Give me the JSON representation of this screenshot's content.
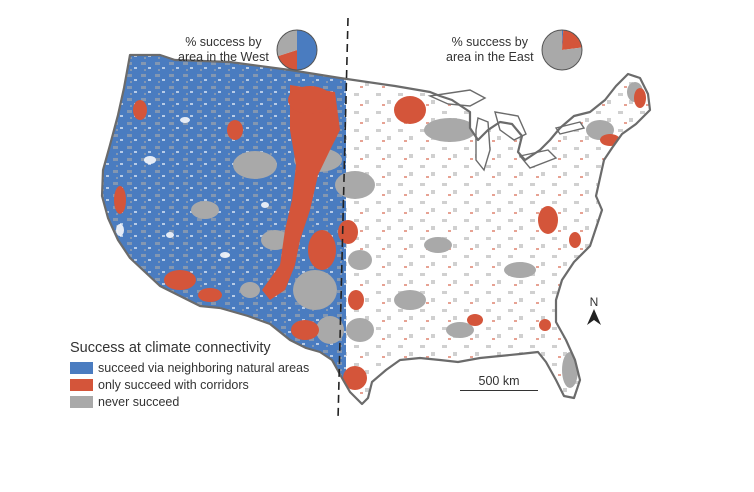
{
  "pies": {
    "west": {
      "label_line1": "% success by",
      "label_line2": "area in the West",
      "shares": [
        {
          "category": "succeed",
          "fraction": 0.5
        },
        {
          "category": "corridors",
          "fraction": 0.2
        },
        {
          "category": "never",
          "fraction": 0.3
        }
      ]
    },
    "east": {
      "label_line1": "% success by",
      "label_line2": "area in the East",
      "shares": [
        {
          "category": "succeed",
          "fraction": 0.01
        },
        {
          "category": "corridors",
          "fraction": 0.22
        },
        {
          "category": "never",
          "fraction": 0.77
        }
      ]
    }
  },
  "legend": {
    "title": "Success at climate connectivity",
    "items": [
      {
        "key": "succeed",
        "label": "succeed via neighboring natural areas",
        "color": "#4a7cc0"
      },
      {
        "key": "corridors",
        "label": "only succeed with corridors",
        "color": "#d4553a"
      },
      {
        "key": "never",
        "label": "never succeed",
        "color": "#a9a9a9"
      }
    ]
  },
  "scale_bar": {
    "label": "500 km"
  },
  "north_arrow": {
    "label": "N"
  },
  "colors": {
    "succeed": "#4a7cc0",
    "corridors": "#d4553a",
    "never": "#a9a9a9",
    "outline": "#6b6b6b",
    "divider": "#222222"
  }
}
